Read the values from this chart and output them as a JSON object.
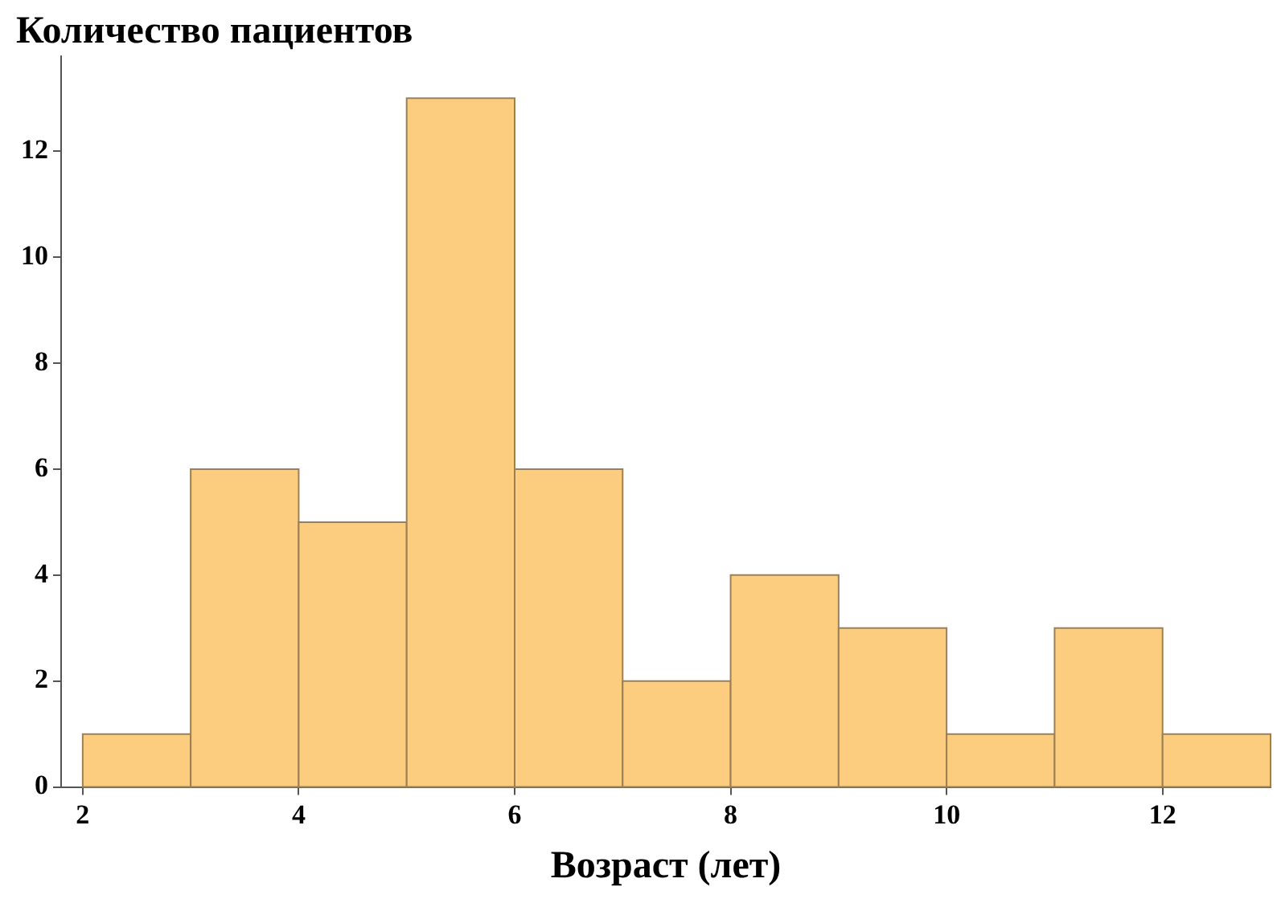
{
  "chart_data": {
    "type": "histogram",
    "title": "Количество пациентов",
    "xlabel": "Возраст (лет)",
    "bins": [
      2,
      3,
      4,
      5,
      6,
      7,
      8,
      9,
      10,
      11,
      12,
      13
    ],
    "values": [
      1,
      6,
      5,
      13,
      6,
      2,
      4,
      3,
      1,
      3,
      1
    ],
    "color": "#fccd7e",
    "xlim": [
      1.8,
      13
    ],
    "xticks": [
      2,
      4,
      6,
      8,
      10,
      12
    ],
    "ylim": [
      0,
      13.8
    ],
    "yticks": [
      0,
      2,
      4,
      6,
      8,
      10,
      12
    ],
    "grid": false,
    "legend": false
  }
}
